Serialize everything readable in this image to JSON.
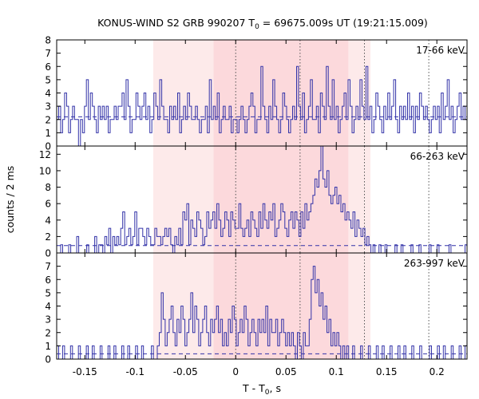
{
  "chart_data": {
    "type": "line",
    "title": {
      "prefix": "KONUS-WIND S2 GRB 990207 T",
      "sub": "0",
      "suffix": " = 69675.009s UT (19:21:15.009)"
    },
    "xlabel": {
      "prefix": "T - T",
      "sub": "0",
      "suffix": ", s"
    },
    "ylabel": "counts / 2 ms",
    "xlim": [
      -0.178,
      0.23
    ],
    "x_ticks": [
      -0.15,
      -0.1,
      -0.05,
      0,
      0.05,
      0.1,
      0.15,
      0.2
    ],
    "x_tick_labels": [
      "-0.15",
      "-0.1",
      "-0.05",
      "0",
      "0.05",
      "0.1",
      "0.15",
      "0.2"
    ],
    "bin_width_s": 0.002,
    "shaded_intervals": [
      {
        "x0": -0.082,
        "x1": 0.134,
        "color": "#fdeaea"
      },
      {
        "x0": -0.022,
        "x1": 0.112,
        "color": "#fcd9dc"
      }
    ],
    "vertical_markers": [
      0,
      0.064,
      0.128,
      0.192
    ],
    "series_color": "#3232a8",
    "panels": [
      {
        "band": "17-66 keV",
        "ylim": [
          0,
          8
        ],
        "y_ticks": [
          0,
          1,
          2,
          3,
          4,
          5,
          6,
          7,
          8
        ],
        "background": 2.2,
        "counts": [
          2,
          3,
          1,
          2,
          4,
          3,
          1,
          2,
          3,
          2,
          2,
          0,
          2,
          1,
          3,
          5,
          2,
          4,
          3,
          2,
          1,
          3,
          2,
          3,
          2,
          3,
          1,
          2,
          2,
          3,
          2,
          3,
          3,
          4,
          2,
          5,
          3,
          1,
          2,
          2,
          4,
          3,
          2,
          3,
          4,
          2,
          3,
          1,
          2,
          4,
          3,
          2,
          5,
          3,
          2,
          2,
          1,
          3,
          2,
          3,
          2,
          4,
          1,
          2,
          3,
          2,
          4,
          3,
          2,
          2,
          3,
          2,
          1,
          2,
          2,
          3,
          1,
          5,
          2,
          3,
          2,
          4,
          1,
          2,
          3,
          2,
          2,
          3,
          1,
          2,
          2,
          1,
          2,
          3,
          2,
          1,
          2,
          3,
          4,
          3,
          1,
          2,
          2,
          6,
          3,
          2,
          1,
          3,
          2,
          5,
          3,
          2,
          1,
          2,
          4,
          3,
          2,
          1,
          2,
          3,
          2,
          6,
          3,
          2,
          4,
          1,
          2,
          3,
          5,
          2,
          2,
          3,
          1,
          4,
          3,
          2,
          6,
          3,
          2,
          5,
          2,
          3,
          1,
          2,
          3,
          4,
          2,
          5,
          3,
          1,
          2,
          3,
          2,
          5,
          3,
          2,
          6,
          2,
          3,
          1,
          2,
          4,
          3,
          2,
          1,
          3,
          2,
          4,
          2,
          3,
          5,
          2,
          1,
          3,
          2,
          3,
          2,
          4,
          2,
          3,
          1,
          3,
          2,
          4,
          3,
          2,
          3,
          2,
          1,
          2,
          3,
          2,
          3,
          1,
          4,
          2,
          3,
          5,
          2,
          3,
          1,
          2,
          3,
          4,
          2,
          3,
          2
        ]
      },
      {
        "band": "66-263 keV",
        "ylim": [
          0,
          13
        ],
        "y_ticks": [
          0,
          2,
          4,
          6,
          8,
          10,
          12
        ],
        "background": 0.9,
        "counts": [
          0,
          0,
          1,
          0,
          0,
          0,
          1,
          0,
          0,
          0,
          2,
          0,
          0,
          0,
          0,
          1,
          0,
          0,
          0,
          2,
          0,
          1,
          1,
          0,
          2,
          1,
          3,
          0,
          2,
          1,
          2,
          1,
          3,
          5,
          1,
          2,
          3,
          1,
          2,
          5,
          1,
          3,
          3,
          2,
          1,
          3,
          2,
          1,
          1,
          3,
          2,
          2,
          1,
          2,
          3,
          2,
          3,
          1,
          0,
          2,
          1,
          3,
          1,
          5,
          4,
          6,
          1,
          4,
          3,
          2,
          5,
          4,
          3,
          1,
          2,
          5,
          3,
          4,
          5,
          3,
          6,
          4,
          2,
          3,
          5,
          4,
          2,
          5,
          4,
          3,
          3,
          6,
          3,
          2,
          3,
          4,
          2,
          5,
          4,
          3,
          2,
          5,
          3,
          6,
          4,
          3,
          5,
          4,
          6,
          2,
          3,
          4,
          6,
          5,
          3,
          2,
          4,
          5,
          3,
          5,
          4,
          2,
          5,
          3,
          6,
          4,
          5,
          6,
          7,
          9,
          8,
          10,
          13,
          9,
          8,
          10,
          7,
          6,
          7,
          8,
          6,
          7,
          5,
          6,
          4,
          5,
          4,
          3,
          5,
          2,
          4,
          3,
          2,
          3,
          1,
          2,
          1,
          0,
          1,
          0,
          0,
          1,
          0,
          0,
          1,
          0,
          0,
          0,
          0,
          1,
          0,
          0,
          1,
          0,
          0,
          0,
          0,
          1,
          0,
          0,
          0,
          1,
          0,
          0,
          0,
          0,
          1,
          0,
          0,
          0,
          1,
          0,
          0,
          0,
          0,
          0,
          1,
          0,
          0,
          0,
          0,
          0,
          0,
          0,
          1
        ]
      },
      {
        "band": "263-997 keV",
        "ylim": [
          0,
          8
        ],
        "y_ticks": [
          0,
          1,
          2,
          3,
          4,
          5,
          6,
          7
        ],
        "background": 0.4,
        "counts": [
          1,
          0,
          0,
          1,
          0,
          0,
          0,
          1,
          0,
          0,
          0,
          1,
          0,
          0,
          0,
          1,
          0,
          0,
          1,
          0,
          0,
          0,
          1,
          0,
          0,
          0,
          1,
          0,
          0,
          1,
          0,
          0,
          0,
          1,
          0,
          0,
          1,
          0,
          0,
          0,
          1,
          0,
          0,
          1,
          0,
          0,
          0,
          0,
          1,
          0,
          0,
          1,
          2,
          5,
          3,
          1,
          2,
          3,
          4,
          2,
          1,
          3,
          2,
          4,
          3,
          1,
          2,
          3,
          5,
          2,
          4,
          3,
          1,
          2,
          3,
          4,
          2,
          1,
          3,
          2,
          3,
          4,
          2,
          3,
          1,
          2,
          1,
          3,
          2,
          4,
          3,
          1,
          2,
          3,
          2,
          4,
          3,
          1,
          2,
          3,
          2,
          1,
          3,
          2,
          3,
          2,
          4,
          1,
          3,
          2,
          2,
          3,
          1,
          2,
          3,
          2,
          1,
          2,
          1,
          2,
          1,
          0,
          2,
          1,
          0,
          2,
          1,
          1,
          3,
          6,
          7,
          5,
          6,
          4,
          5,
          3,
          4,
          2,
          3,
          1,
          2,
          1,
          2,
          1,
          0,
          1,
          0,
          1,
          0,
          0,
          1,
          0,
          0,
          0,
          1,
          0,
          0,
          0,
          1,
          0,
          0,
          0,
          1,
          0,
          0,
          1,
          0,
          0,
          0,
          1,
          0,
          0,
          0,
          1,
          0,
          0,
          1,
          0,
          0,
          0,
          1,
          0,
          0,
          0,
          1,
          0,
          0,
          0,
          0,
          1,
          0,
          0,
          0,
          1,
          0,
          0,
          1,
          0,
          0,
          0,
          1,
          0,
          0,
          0,
          1,
          0,
          0,
          1
        ]
      }
    ]
  }
}
